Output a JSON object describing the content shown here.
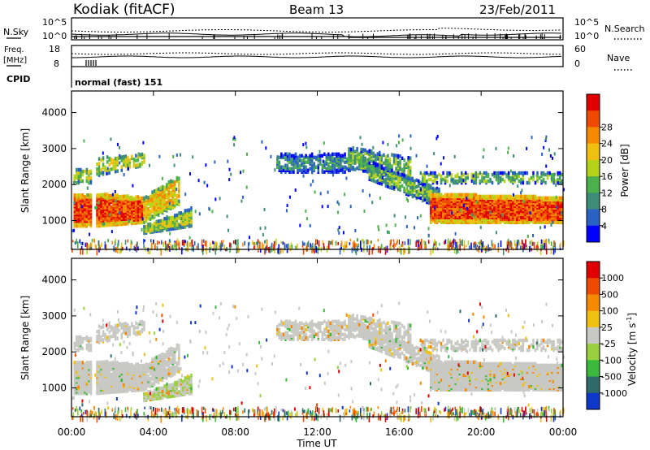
{
  "header": {
    "station": "Kodiak (fitACF)",
    "beam": "Beam 13",
    "date": "23/Feb/2011"
  },
  "chart_data": [
    {
      "type": "line",
      "panel": "noise",
      "left_label": "N.Sky",
      "right_label": "N.Search",
      "left_ticks": [
        "10^5",
        "10^0"
      ],
      "right_ticks": [
        "10^5",
        "10^0"
      ]
    },
    {
      "type": "line",
      "panel": "frequency-nave",
      "left_label_line1": "Freq.",
      "left_label_line2": "[MHz]",
      "right_label": "Nave",
      "left_ticks": [
        18,
        8
      ],
      "right_ticks": [
        60,
        0
      ]
    },
    {
      "type": "table",
      "panel": "cpid",
      "label": "CPID",
      "value": "normal (fast) 151"
    },
    {
      "type": "heatmap",
      "panel": "power",
      "ylabel": "Slant Range [km]",
      "yticks": [
        1000,
        2000,
        3000,
        4000
      ],
      "ylim": [
        200,
        4600
      ],
      "colorbar_label": "Power [dB]",
      "colorbar_ticks": [
        4,
        8,
        12,
        16,
        20,
        24,
        28
      ],
      "colors": [
        "#0000ff",
        "#2a62c4",
        "#3f8c78",
        "#4cb04c",
        "#b6d21a",
        "#f0c010",
        "#f58a00",
        "#ee4a00",
        "#e00000"
      ]
    },
    {
      "type": "heatmap",
      "panel": "velocity",
      "ylabel": "Slant Range [km]",
      "yticks": [
        1000,
        2000,
        3000,
        4000
      ],
      "ylim": [
        200,
        4600
      ],
      "colorbar_label": "Velocity [m s^-1]",
      "colorbar_ticks": [
        1000,
        500,
        100,
        25,
        -25,
        -100,
        -500,
        -1000
      ],
      "colors": [
        "#1038c8",
        "#2e6a6a",
        "#3cb83c",
        "#9ad040",
        "#c8c8c4",
        "#f0c010",
        "#f58a00",
        "#ee4a00",
        "#e00000"
      ]
    }
  ],
  "time_axis": {
    "label": "Time UT",
    "ticks": [
      "00:00",
      "04:00",
      "08:00",
      "12:00",
      "16:00",
      "20:00",
      "00:00"
    ]
  }
}
